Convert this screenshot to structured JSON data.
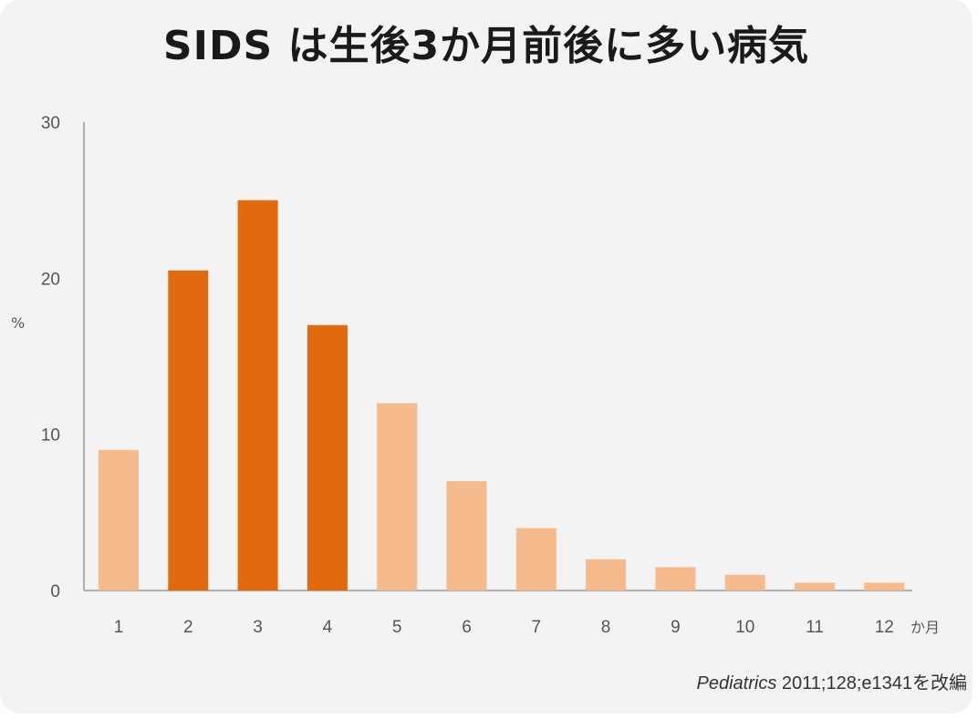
{
  "title": "SIDS は生後3か月前後に多い病気",
  "colors": {
    "highlight": "#e26a0e",
    "normal": "#f5bb8c",
    "axis": "#999999",
    "background": "#f3f3f3"
  },
  "chart_data": {
    "type": "bar",
    "title": "SIDS は生後3か月前後に多い病気",
    "ylabel": "%",
    "xunit": "か月",
    "ylim": [
      0,
      30
    ],
    "yticks": [
      0,
      10,
      20,
      30
    ],
    "categories": [
      "1",
      "2",
      "3",
      "4",
      "5",
      "6",
      "7",
      "8",
      "9",
      "10",
      "11",
      "12"
    ],
    "values": [
      9,
      20.5,
      25,
      17,
      12,
      7,
      4,
      2,
      1.5,
      1,
      0.5,
      0.5
    ],
    "highlighted": [
      false,
      true,
      true,
      true,
      false,
      false,
      false,
      false,
      false,
      false,
      false,
      false
    ],
    "grid": false,
    "legend": "none"
  },
  "source": {
    "journal": "Pediatrics",
    "citation": " 2011;128;e1341を改編"
  }
}
